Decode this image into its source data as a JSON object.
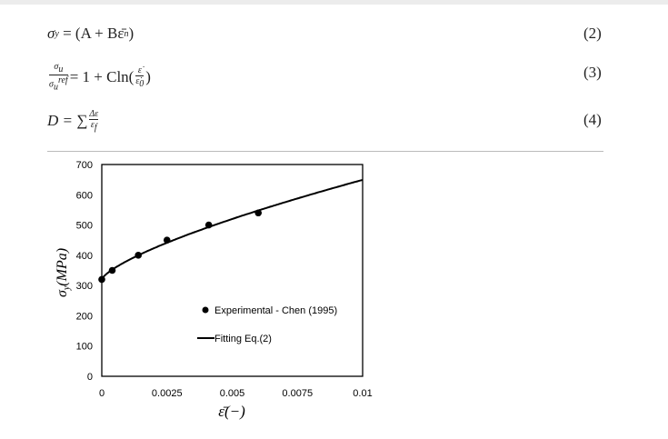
{
  "equations": [
    {
      "lhs": "σ",
      "lhs_sub": "y",
      "rhs": "= (A + Bε̄",
      "rhs_sup": "n",
      "rhs_end": ")",
      "number": "(2)"
    },
    {
      "num": "σ",
      "num_sub": "u",
      "den": "σ",
      "den_sub": "u",
      "den_sup": "ref",
      "rhs": "= 1 + Cln(",
      "inner_num": "ε̇",
      "inner_den": "ε̇",
      "inner_den_sub": "0",
      "rhs_end": ")",
      "number": "(3)"
    },
    {
      "lhs": "D = ∑",
      "num": "Δε",
      "den": "ε",
      "den_sub": "f",
      "number": "(4)"
    }
  ],
  "chart_data": {
    "type": "scatter",
    "xlabel": "ε̄(−)",
    "ylabel": "σ",
    "ylabel_sub": "y",
    "ylabel_unit": "(MPa)",
    "xlim": [
      0,
      0.01
    ],
    "ylim": [
      0,
      700
    ],
    "xticks": [
      "0",
      "0.0025",
      "0.005",
      "0.0075",
      "0.01"
    ],
    "yticks": [
      "0",
      "100",
      "200",
      "300",
      "400",
      "500",
      "600",
      "700"
    ],
    "grid": false,
    "legend_position": "center-right",
    "series": [
      {
        "name": "Experimental - Chen (1995)",
        "kind": "points",
        "x": [
          0,
          0.0004,
          0.0014,
          0.0025,
          0.0041,
          0.006
        ],
        "y": [
          320,
          350,
          400,
          450,
          500,
          540
        ]
      },
      {
        "name": "Fitting Eq.(2)",
        "kind": "line",
        "A": 320,
        "B": 9070,
        "n": 0.72
      }
    ]
  }
}
